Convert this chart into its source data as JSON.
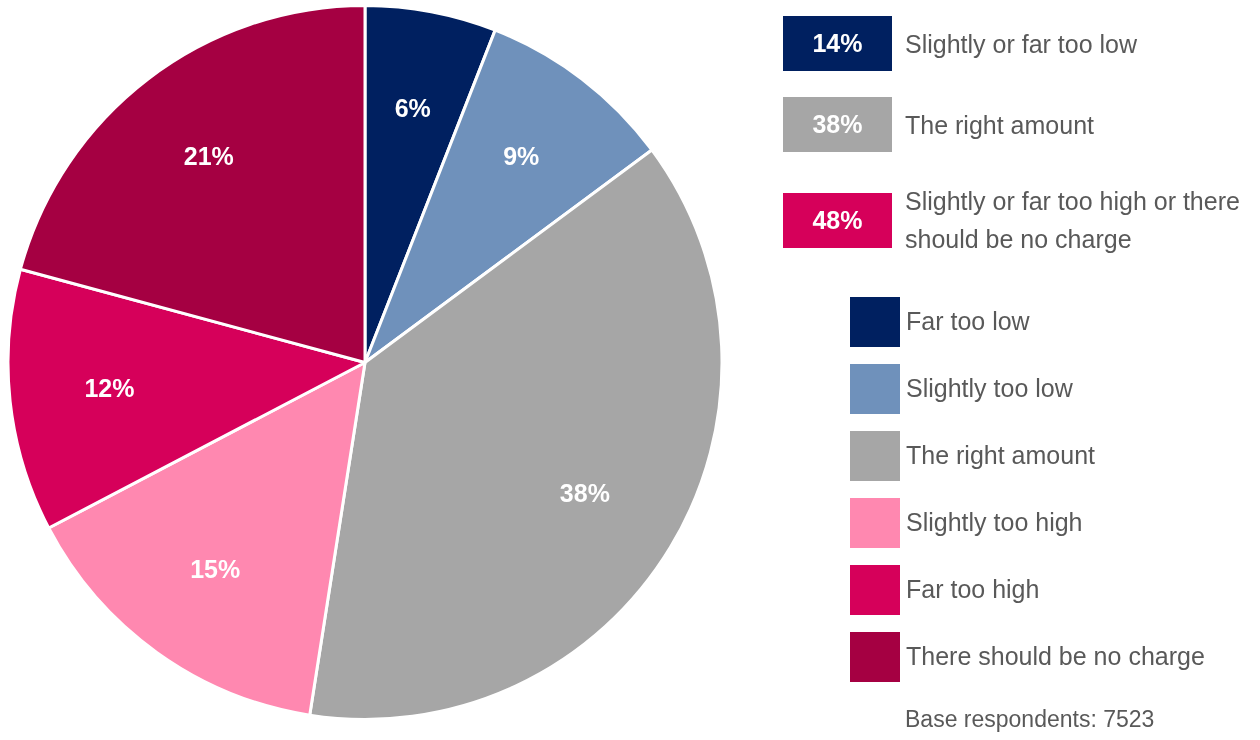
{
  "chart_data": {
    "type": "pie",
    "categories": [
      "Far too low",
      "Slightly too low",
      "The right amount",
      "Slightly too high",
      "Far too high",
      "There should be no charge"
    ],
    "values": [
      6,
      9,
      38,
      15,
      12,
      21
    ],
    "colors": [
      "#002060",
      "#6f91bb",
      "#a6a6a6",
      "#ff88b0",
      "#d6005a",
      "#a50042"
    ],
    "value_labels": [
      "6%",
      "9%",
      "38%",
      "15%",
      "12%",
      "21%"
    ],
    "legend": "right",
    "annotations": [
      "14%",
      "Slightly or far too low",
      "38%",
      "The right amount",
      "48%",
      "Slightly or far too high or there should be no charge",
      "Base respondents: 7523"
    ]
  }
}
